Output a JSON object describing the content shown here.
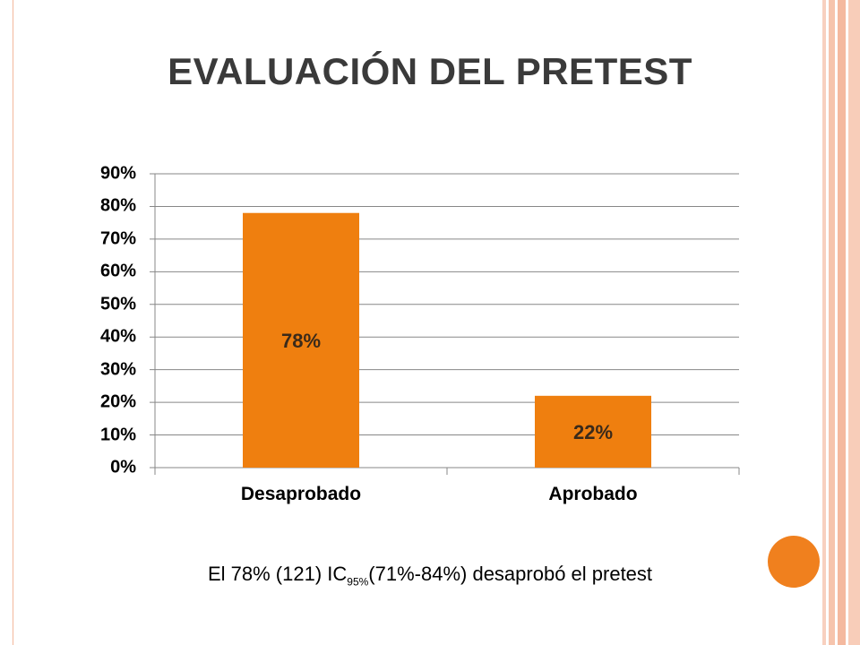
{
  "slide": {
    "title": "EVALUACIÓN DEL PRETEST",
    "caption_prefix": "El 78% (121) IC",
    "caption_sub": "95%",
    "caption_suffix": "(71%-84%) desaprobó el pretest"
  },
  "colors": {
    "bar": "#ef7f0f",
    "accent_circle": "#f0801e",
    "frame_stripe": "#f6c4ad"
  },
  "chart_data": {
    "type": "bar",
    "title": "",
    "xlabel": "",
    "ylabel": "",
    "categories": [
      "Desaprobado",
      "Aprobado"
    ],
    "values": [
      78,
      22
    ],
    "data_labels": [
      "78%",
      "22%"
    ],
    "ylim": [
      0,
      90
    ],
    "yticks": [
      "0%",
      "10%",
      "20%",
      "30%",
      "40%",
      "50%",
      "60%",
      "70%",
      "80%",
      "90%"
    ],
    "grid": true,
    "legend": "none"
  }
}
